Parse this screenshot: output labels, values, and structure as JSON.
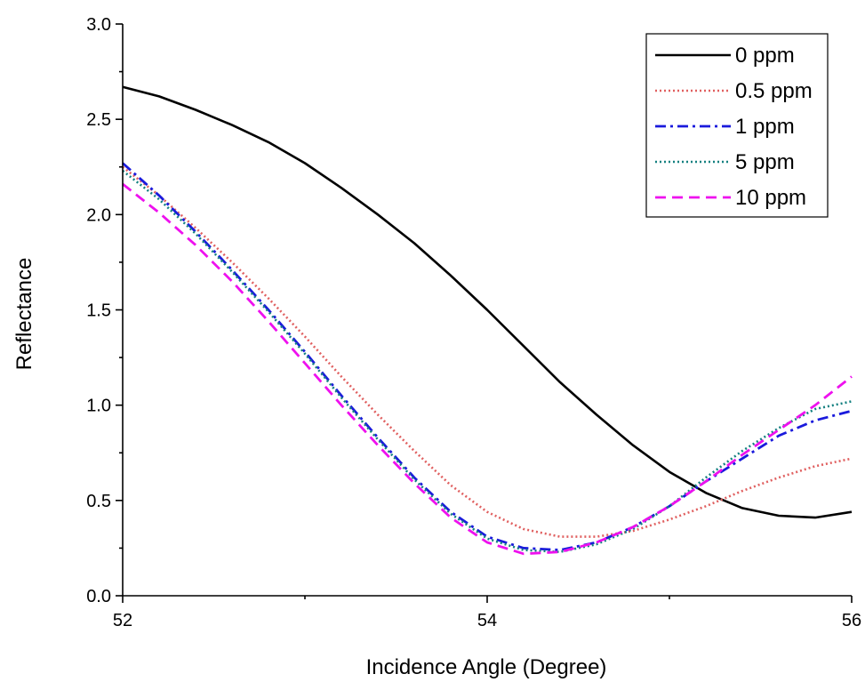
{
  "chart_data": {
    "type": "line",
    "xlabel": "Incidence Angle (Degree)",
    "ylabel": "Reflectance",
    "xlim": [
      52,
      56
    ],
    "ylim": [
      0,
      3.0
    ],
    "x_ticks": [
      "52",
      "54",
      "56"
    ],
    "y_ticks": [
      "0.0",
      "0.5",
      "1.0",
      "1.5",
      "2.0",
      "2.5",
      "3.0"
    ],
    "legend_position": "top-right",
    "grid": false,
    "series": [
      {
        "name": "0 ppm",
        "color": "#000000",
        "dash": "solid",
        "x": [
          52.0,
          52.2,
          52.4,
          52.6,
          52.8,
          53.0,
          53.2,
          53.4,
          53.6,
          53.8,
          54.0,
          54.2,
          54.4,
          54.6,
          54.8,
          55.0,
          55.2,
          55.4,
          55.6,
          55.8,
          56.0
        ],
        "y": [
          2.67,
          2.62,
          2.55,
          2.47,
          2.38,
          2.27,
          2.14,
          2.0,
          1.85,
          1.68,
          1.5,
          1.31,
          1.12,
          0.95,
          0.79,
          0.65,
          0.54,
          0.46,
          0.42,
          0.41,
          0.44
        ]
      },
      {
        "name": "0.5 ppm",
        "color": "#e06060",
        "dash": "dotted",
        "x": [
          52.0,
          52.2,
          52.4,
          52.6,
          52.8,
          53.0,
          53.2,
          53.4,
          53.6,
          53.8,
          54.0,
          54.2,
          54.4,
          54.6,
          54.8,
          55.0,
          55.2,
          55.4,
          55.6,
          55.8,
          56.0
        ],
        "y": [
          2.25,
          2.1,
          1.93,
          1.75,
          1.56,
          1.36,
          1.15,
          0.95,
          0.76,
          0.58,
          0.44,
          0.35,
          0.31,
          0.31,
          0.34,
          0.4,
          0.47,
          0.55,
          0.62,
          0.68,
          0.72
        ]
      },
      {
        "name": "1 ppm",
        "color": "#1a1adc",
        "dash": "dashdot",
        "x": [
          52.0,
          52.2,
          52.4,
          52.6,
          52.8,
          53.0,
          53.2,
          53.4,
          53.6,
          53.8,
          54.0,
          54.2,
          54.4,
          54.6,
          54.8,
          55.0,
          55.2,
          55.4,
          55.6,
          55.8,
          56.0
        ],
        "y": [
          2.27,
          2.1,
          1.91,
          1.71,
          1.5,
          1.28,
          1.05,
          0.83,
          0.62,
          0.44,
          0.31,
          0.25,
          0.24,
          0.28,
          0.36,
          0.47,
          0.6,
          0.72,
          0.84,
          0.92,
          0.97
        ]
      },
      {
        "name": "5 ppm",
        "color": "#138080",
        "dash": "dotted",
        "x": [
          52.0,
          52.2,
          52.4,
          52.6,
          52.8,
          53.0,
          53.2,
          53.4,
          53.6,
          53.8,
          54.0,
          54.2,
          54.4,
          54.6,
          54.8,
          55.0,
          55.2,
          55.4,
          55.6,
          55.8,
          56.0
        ],
        "y": [
          2.23,
          2.08,
          1.9,
          1.7,
          1.49,
          1.27,
          1.04,
          0.82,
          0.61,
          0.43,
          0.3,
          0.24,
          0.23,
          0.27,
          0.35,
          0.47,
          0.62,
          0.76,
          0.88,
          0.98,
          1.02
        ]
      },
      {
        "name": "10 ppm",
        "color": "#ee11ee",
        "dash": "dashed",
        "x": [
          52.0,
          52.2,
          52.4,
          52.6,
          52.8,
          53.0,
          53.2,
          53.4,
          53.6,
          53.8,
          54.0,
          54.2,
          54.4,
          54.6,
          54.8,
          55.0,
          55.2,
          55.4,
          55.6,
          55.8,
          56.0
        ],
        "y": [
          2.16,
          2.01,
          1.84,
          1.65,
          1.44,
          1.22,
          1.0,
          0.79,
          0.59,
          0.41,
          0.28,
          0.22,
          0.23,
          0.28,
          0.36,
          0.47,
          0.6,
          0.74,
          0.87,
          1.0,
          1.15
        ]
      }
    ]
  }
}
